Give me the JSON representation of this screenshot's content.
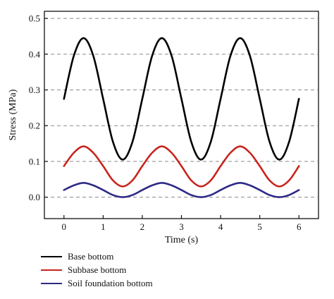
{
  "chart_data": {
    "type": "line",
    "xlabel": "Time (s)",
    "ylabel": "Stress (MPa)",
    "xlim": [
      -0.5,
      6.5
    ],
    "ylim": [
      -0.06,
      0.52
    ],
    "xticks": [
      "0",
      "1",
      "2",
      "3",
      "4",
      "5",
      "6"
    ],
    "yticks": [
      "0.0",
      "0.1",
      "0.2",
      "0.3",
      "0.4",
      "0.5"
    ],
    "grid": "horizontal-dashed",
    "legend_position": "below",
    "series": [
      {
        "name": "Base bottom",
        "color": "#000000",
        "x": [
          0,
          0.25,
          0.5,
          0.75,
          1,
          1.25,
          1.5,
          1.75,
          2,
          2.25,
          2.5,
          2.75,
          3,
          3.25,
          3.5,
          3.75,
          4,
          4.25,
          4.5,
          4.75,
          5,
          5.25,
          5.5,
          5.75,
          6
        ],
        "y": [
          0.275,
          0.395,
          0.445,
          0.395,
          0.275,
          0.155,
          0.105,
          0.155,
          0.275,
          0.395,
          0.445,
          0.395,
          0.275,
          0.155,
          0.105,
          0.155,
          0.275,
          0.395,
          0.445,
          0.395,
          0.275,
          0.155,
          0.105,
          0.155,
          0.275
        ]
      },
      {
        "name": "Subbase bottom",
        "color": "#c8241c",
        "x": [
          0,
          0.25,
          0.5,
          0.75,
          1,
          1.25,
          1.5,
          1.75,
          2,
          2.25,
          2.5,
          2.75,
          3,
          3.25,
          3.5,
          3.75,
          4,
          4.25,
          4.5,
          4.75,
          5,
          5.25,
          5.5,
          5.75,
          6
        ],
        "y": [
          0.087,
          0.124,
          0.142,
          0.124,
          0.087,
          0.047,
          0.03,
          0.047,
          0.087,
          0.124,
          0.142,
          0.124,
          0.087,
          0.047,
          0.03,
          0.047,
          0.087,
          0.124,
          0.142,
          0.124,
          0.087,
          0.047,
          0.03,
          0.047,
          0.087
        ]
      },
      {
        "name": "Soil foundation bottom",
        "color": "#2e2a86",
        "x": [
          0,
          0.25,
          0.5,
          0.75,
          1,
          1.25,
          1.5,
          1.75,
          2,
          2.25,
          2.5,
          2.75,
          3,
          3.25,
          3.5,
          3.75,
          4,
          4.25,
          4.5,
          4.75,
          5,
          5.25,
          5.5,
          5.75,
          6
        ],
        "y": [
          0.02,
          0.033,
          0.04,
          0.033,
          0.02,
          0.006,
          0.0,
          0.006,
          0.02,
          0.033,
          0.04,
          0.033,
          0.02,
          0.006,
          0.0,
          0.006,
          0.02,
          0.033,
          0.04,
          0.033,
          0.02,
          0.006,
          0.0,
          0.006,
          0.02
        ]
      }
    ]
  }
}
